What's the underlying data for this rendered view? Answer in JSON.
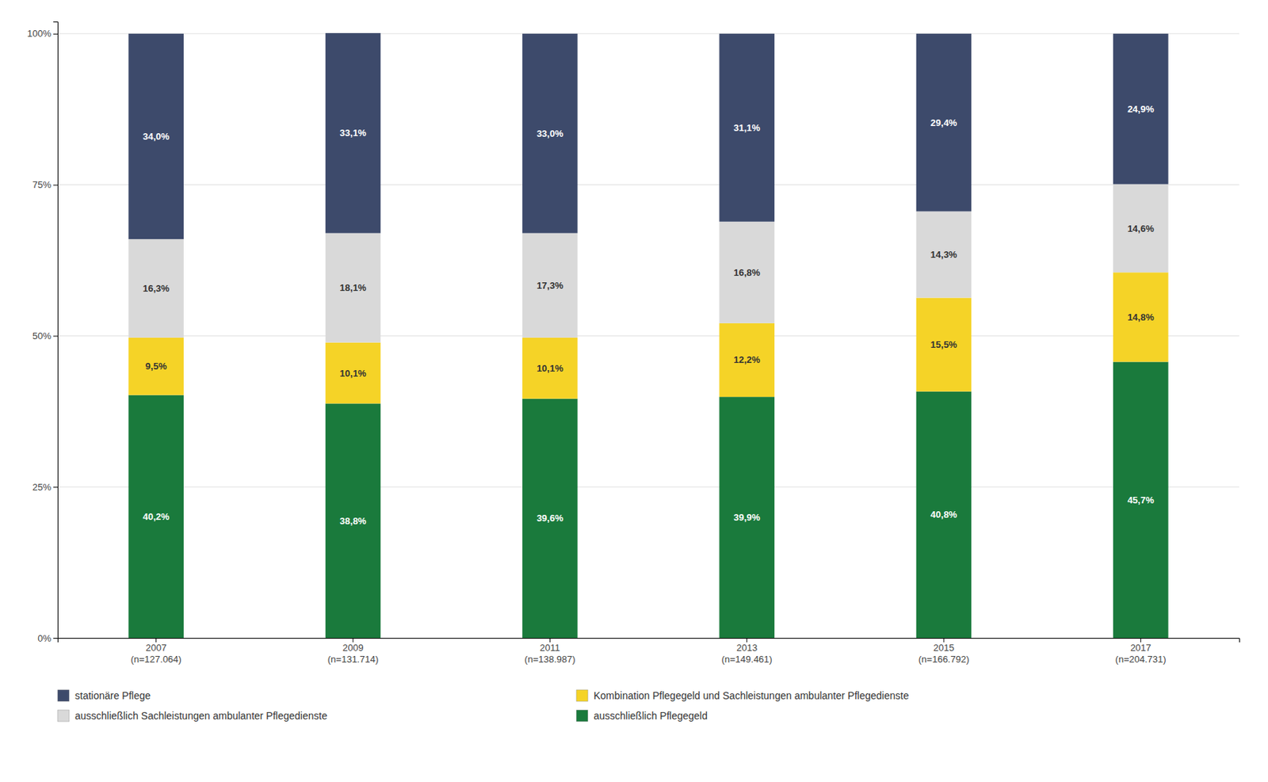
{
  "chart_data": {
    "type": "bar",
    "stacked": true,
    "data_labels": true,
    "grid": true,
    "legend": "bottom",
    "categories": [
      "2007\n(n=127.064)",
      "2009\n(n=131.714)",
      "2011\n(n=138.987)",
      "2013\n(n=149.461)",
      "2015\n(n=166.792)",
      "2017\n(n=204.731)"
    ],
    "series": [
      {
        "name": "ausschließlich Pflegegeld",
        "color": "#1a7a3c",
        "values": [
          40.2,
          38.8,
          39.6,
          39.9,
          40.8,
          45.7
        ],
        "value_labels": [
          "40,2%",
          "38,8%",
          "39,6%",
          "39,9%",
          "40,8%",
          "45,7%"
        ]
      },
      {
        "name": "Kombination Pflegegeld und Sachleistungen ambulanter Pflegedienste",
        "color": "#f5d327",
        "values": [
          9.5,
          10.1,
          10.1,
          12.2,
          15.5,
          14.8
        ],
        "value_labels": [
          "9,5%",
          "10,1%",
          "10,1%",
          "12,2%",
          "15,5%",
          "14,8%"
        ]
      },
      {
        "name": "ausschließlich Sachleistungen ambulanter Pflegedienste",
        "color": "#d9d9d9",
        "values": [
          16.3,
          18.1,
          17.3,
          16.8,
          14.3,
          14.6
        ],
        "value_labels": [
          "16,3%",
          "18,1%",
          "17,3%",
          "16,8%",
          "14,3%",
          "14,6%"
        ]
      },
      {
        "name": "stationäre Pflege",
        "color": "#3d4a6b",
        "values": [
          34.0,
          33.1,
          33.0,
          31.1,
          29.4,
          24.9
        ],
        "value_labels": [
          "34,0%",
          "33,1%",
          "33,0%",
          "31,1%",
          "29,4%",
          "24,9%"
        ]
      }
    ],
    "ylim": [
      0,
      102
    ],
    "yticks": [
      {
        "value": 0,
        "label": "0%"
      },
      {
        "value": 25,
        "label": "25%"
      },
      {
        "value": 50,
        "label": "50%"
      },
      {
        "value": 75,
        "label": "75%"
      },
      {
        "value": 100,
        "label": "100%"
      }
    ]
  }
}
